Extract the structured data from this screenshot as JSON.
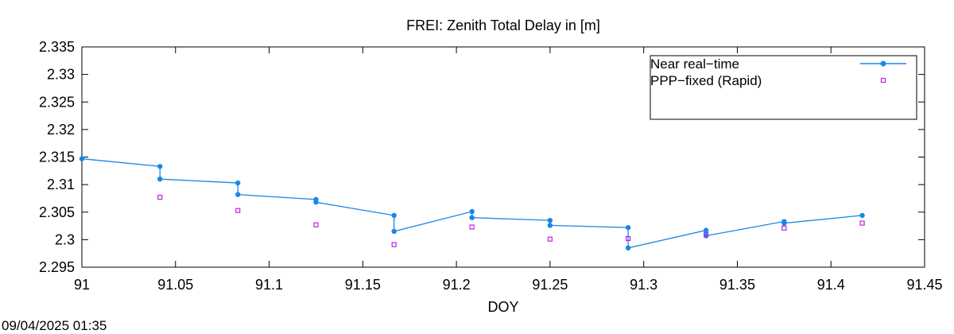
{
  "chart_data": {
    "type": "line",
    "title": "FREI: Zenith Total Delay in [m]",
    "xlabel": "DOY",
    "ylabel": "",
    "xlim": [
      91,
      91.45
    ],
    "ylim": [
      2.295,
      2.335
    ],
    "xticks": [
      "91",
      "91.05",
      "91.1",
      "91.15",
      "91.2",
      "91.25",
      "91.3",
      "91.35",
      "91.4",
      "91.45"
    ],
    "yticks": [
      "2.295",
      "2.3",
      "2.305",
      "2.31",
      "2.315",
      "2.32",
      "2.325",
      "2.33",
      "2.335"
    ],
    "legend_position": "top-right",
    "series": [
      {
        "name": "Near real−time",
        "color": "#1a86e8",
        "style": "line-points",
        "points": [
          [
            91.0,
            2.3147
          ],
          [
            91.0417,
            2.3133
          ],
          [
            91.0417,
            2.311
          ],
          [
            91.0833,
            2.3103
          ],
          [
            91.0833,
            2.3082
          ],
          [
            91.125,
            2.3073
          ],
          [
            91.125,
            2.3068
          ],
          [
            91.1667,
            2.3044
          ],
          [
            91.1667,
            2.3015
          ],
          [
            91.2083,
            2.3051
          ],
          [
            91.2083,
            2.304
          ],
          [
            91.25,
            2.3035
          ],
          [
            91.25,
            2.3026
          ],
          [
            91.2917,
            2.3022
          ],
          [
            91.2917,
            2.2985
          ],
          [
            91.3333,
            2.3017
          ],
          [
            91.3333,
            2.3007
          ],
          [
            91.375,
            2.3033
          ],
          [
            91.375,
            2.303
          ],
          [
            91.4167,
            2.3044
          ]
        ]
      },
      {
        "name": "PPP−fixed (Rapid)",
        "color": "#c020e0",
        "style": "squares",
        "points": [
          [
            91.0417,
            2.3077
          ],
          [
            91.0833,
            2.3053
          ],
          [
            91.125,
            2.3027
          ],
          [
            91.1667,
            2.2991
          ],
          [
            91.2083,
            2.3023
          ],
          [
            91.25,
            2.3001
          ],
          [
            91.2917,
            2.3002
          ],
          [
            91.3333,
            2.3009
          ],
          [
            91.375,
            2.3021
          ],
          [
            91.4167,
            2.303
          ]
        ]
      }
    ]
  },
  "footer": {
    "timestamp": "09/04/2025 01:35"
  }
}
